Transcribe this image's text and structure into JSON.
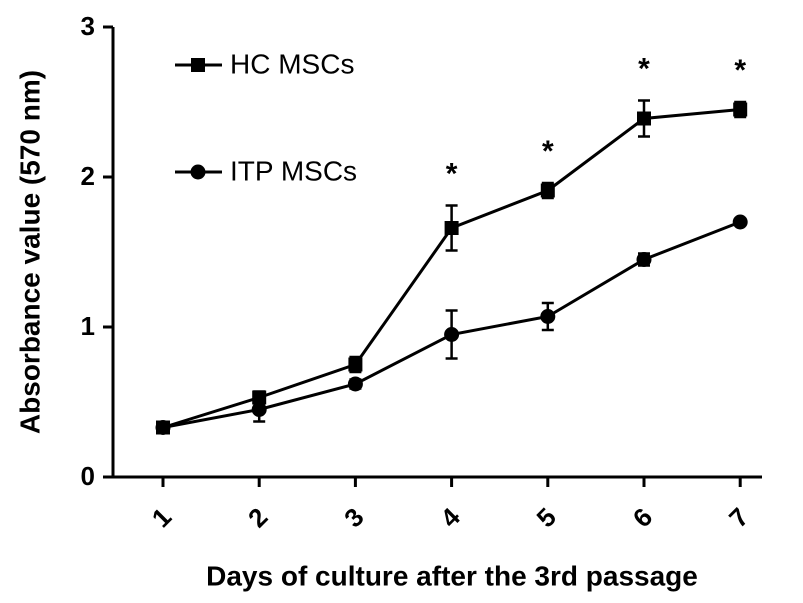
{
  "chart_data": {
    "type": "line",
    "x_label": "Days of culture after the 3rd passage",
    "y_label": "Absorbance value (570 nm)",
    "categories": [
      "1",
      "2",
      "3",
      "4",
      "5",
      "6",
      "7"
    ],
    "series": [
      {
        "name": "HC MSCs",
        "color": "#000000",
        "marker": "square",
        "values": [
          0.33,
          0.53,
          0.75,
          1.66,
          1.91,
          2.39,
          2.45
        ],
        "errors": [
          0.02,
          0.04,
          0.05,
          0.15,
          0.05,
          0.12,
          0.05
        ]
      },
      {
        "name": "ITP MSCs",
        "color": "#000000",
        "marker": "circle",
        "values": [
          0.33,
          0.45,
          0.62,
          0.95,
          1.07,
          1.45,
          1.7
        ],
        "errors": [
          0.02,
          0.08,
          0.03,
          0.16,
          0.09,
          0.04,
          0.02
        ]
      }
    ],
    "annotations": [
      {
        "x": "4",
        "text": "*"
      },
      {
        "x": "5",
        "text": "*"
      },
      {
        "x": "6",
        "text": "*"
      },
      {
        "x": "7",
        "text": "*"
      }
    ],
    "ylim": [
      0,
      3
    ],
    "yticks": [
      0,
      1,
      2,
      3
    ],
    "grid": false,
    "legend": "upper left"
  }
}
